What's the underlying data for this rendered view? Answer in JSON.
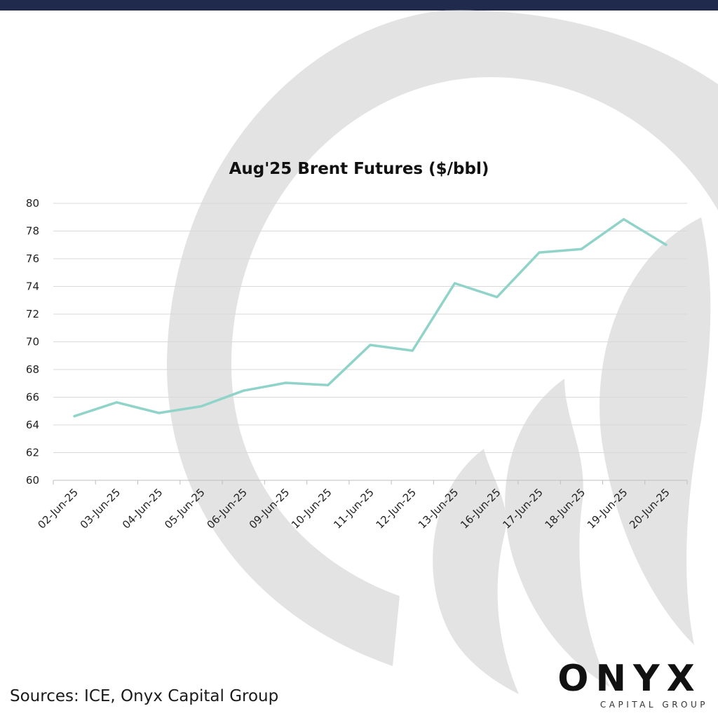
{
  "chart_data": {
    "type": "line",
    "title": "Aug'25 Brent Futures ($/bbl)",
    "xlabel": "",
    "ylabel": "",
    "ylim": [
      60,
      80
    ],
    "yticks": [
      60,
      62,
      64,
      66,
      68,
      70,
      72,
      74,
      76,
      78,
      80
    ],
    "grid": true,
    "legend": "none",
    "categories": [
      "02-Jun-25",
      "03-Jun-25",
      "04-Jun-25",
      "05-Jun-25",
      "06-Jun-25",
      "09-Jun-25",
      "10-Jun-25",
      "11-Jun-25",
      "12-Jun-25",
      "13-Jun-25",
      "16-Jun-25",
      "17-Jun-25",
      "18-Jun-25",
      "19-Jun-25",
      "20-Jun-25"
    ],
    "series": [
      {
        "values": [
          64.63,
          65.63,
          64.86,
          65.34,
          66.47,
          67.04,
          66.87,
          69.77,
          69.36,
          74.23,
          73.23,
          76.45,
          76.7,
          78.85,
          77.01
        ],
        "color": "#8fd3c9"
      }
    ]
  },
  "footer": {
    "sources": "Sources: ICE, Onyx Capital Group"
  },
  "logo": {
    "word": "ONYX",
    "sub": "CAPITAL GROUP"
  },
  "colors": {
    "top_bar": "#1f2a4d",
    "watermark": "#e3e3e3",
    "line": "#8fd3c9",
    "grid": "#d9d9d9"
  }
}
